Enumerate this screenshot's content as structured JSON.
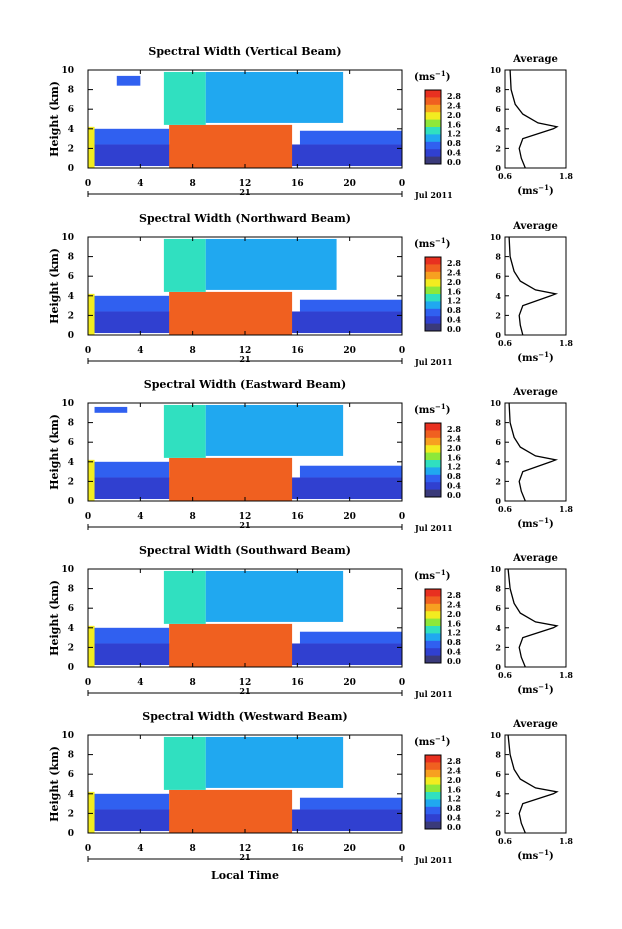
{
  "figure": {
    "colorbar_unit_main": "(ms",
    "colorbar_unit_exp": "−1",
    "colorbar_unit_close": ")",
    "colorbar_ticks": [
      "2.8",
      "2.4",
      "2.0",
      "1.6",
      "1.2",
      "0.8",
      "0.4",
      "0.0"
    ],
    "colorbar_colors": [
      "#e83020",
      "#f06020",
      "#f7a020",
      "#f2ec20",
      "#8ee83a",
      "#30e0c0",
      "#20a8f0",
      "#3060f0",
      "#3040d0",
      "#3a3a7a"
    ],
    "x_ticks": [
      "0",
      "4",
      "8",
      "12",
      "16",
      "20",
      "0"
    ],
    "day_label": "21",
    "month_label": "Jul 2011",
    "y_ticks": [
      "0",
      "2",
      "4",
      "6",
      "8",
      "10"
    ],
    "ylabel": "Height (km)",
    "avg_title": "Average",
    "avg_xticks": [
      "0.6",
      "1.8"
    ],
    "avg_xlabel_main": "(ms",
    "avg_xlabel_exp": "−1",
    "avg_xlabel_close": ")",
    "xlabel": "Local Time"
  },
  "chart_data": [
    {
      "type": "heatmap",
      "title": "Spectral Width (Vertical Beam)",
      "xlabel": "",
      "ylabel": "Height (km)",
      "xlim": [
        0,
        24
      ],
      "ylim": [
        0,
        10
      ],
      "clim": [
        0.0,
        2.8
      ],
      "regions": [
        {
          "x": [
            0,
            24
          ],
          "y": [
            0.2,
            2.4
          ],
          "v": 0.45
        },
        {
          "x": [
            0,
            6.2
          ],
          "y": [
            2.4,
            4.0
          ],
          "v": 0.55
        },
        {
          "x": [
            16.2,
            24
          ],
          "y": [
            2.4,
            3.8
          ],
          "v": 0.55
        },
        {
          "x": [
            0,
            0.5
          ],
          "y": [
            0,
            4.2
          ],
          "v": 2.0
        },
        {
          "x": [
            6.2,
            15.6
          ],
          "y": [
            0,
            4.4
          ],
          "v": 2.6
        },
        {
          "x": [
            5.8,
            9.0
          ],
          "y": [
            4.4,
            9.8
          ],
          "v": 1.3
        },
        {
          "x": [
            9.0,
            19.5
          ],
          "y": [
            4.6,
            9.8
          ],
          "v": 0.9
        },
        {
          "x": [
            2.2,
            4.0
          ],
          "y": [
            8.4,
            9.4
          ],
          "v": 0.6
        }
      ],
      "avg_profile": {
        "x": [
          1.0,
          0.92,
          0.88,
          0.95,
          1.55,
          1.62,
          1.25,
          0.95,
          0.8,
          0.72,
          0.7
        ],
        "y": [
          0,
          1,
          2,
          3,
          4,
          4.2,
          4.6,
          5.5,
          6.5,
          8,
          10
        ],
        "xlim": [
          0.6,
          1.8
        ]
      }
    },
    {
      "type": "heatmap",
      "title": "Spectral Width (Northward Beam)",
      "xlabel": "",
      "ylabel": "Height (km)",
      "xlim": [
        0,
        24
      ],
      "ylim": [
        0,
        10
      ],
      "clim": [
        0.0,
        2.8
      ],
      "regions": [
        {
          "x": [
            0,
            24
          ],
          "y": [
            0.2,
            2.4
          ],
          "v": 0.45
        },
        {
          "x": [
            0,
            6.2
          ],
          "y": [
            2.4,
            4.0
          ],
          "v": 0.55
        },
        {
          "x": [
            16.2,
            24
          ],
          "y": [
            2.4,
            3.6
          ],
          "v": 0.55
        },
        {
          "x": [
            0,
            0.5
          ],
          "y": [
            0,
            4.2
          ],
          "v": 2.0
        },
        {
          "x": [
            6.2,
            15.6
          ],
          "y": [
            0,
            4.4
          ],
          "v": 2.6
        },
        {
          "x": [
            5.8,
            9.0
          ],
          "y": [
            4.4,
            9.8
          ],
          "v": 1.3
        },
        {
          "x": [
            9.0,
            19.0
          ],
          "y": [
            4.6,
            9.8
          ],
          "v": 0.9
        }
      ],
      "avg_profile": {
        "x": [
          0.95,
          0.9,
          0.88,
          0.95,
          1.5,
          1.6,
          1.2,
          0.9,
          0.78,
          0.7,
          0.68
        ],
        "y": [
          0,
          1,
          2,
          3,
          4,
          4.2,
          4.6,
          5.5,
          6.5,
          8,
          10
        ],
        "xlim": [
          0.6,
          1.8
        ]
      }
    },
    {
      "type": "heatmap",
      "title": "Spectral Width (Eastward Beam)",
      "xlabel": "",
      "ylabel": "Height (km)",
      "xlim": [
        0,
        24
      ],
      "ylim": [
        0,
        10
      ],
      "clim": [
        0.0,
        2.8
      ],
      "regions": [
        {
          "x": [
            0,
            24
          ],
          "y": [
            0.2,
            2.4
          ],
          "v": 0.45
        },
        {
          "x": [
            0,
            6.2
          ],
          "y": [
            2.4,
            4.0
          ],
          "v": 0.55
        },
        {
          "x": [
            16.2,
            24
          ],
          "y": [
            2.4,
            3.6
          ],
          "v": 0.55
        },
        {
          "x": [
            0,
            0.5
          ],
          "y": [
            0,
            4.2
          ],
          "v": 2.0
        },
        {
          "x": [
            6.2,
            15.6
          ],
          "y": [
            0,
            4.4
          ],
          "v": 2.6
        },
        {
          "x": [
            5.8,
            9.0
          ],
          "y": [
            4.4,
            9.8
          ],
          "v": 1.3
        },
        {
          "x": [
            9.0,
            19.5
          ],
          "y": [
            4.6,
            9.8
          ],
          "v": 0.9
        },
        {
          "x": [
            0.5,
            3.0
          ],
          "y": [
            9.0,
            9.6
          ],
          "v": 0.6
        }
      ],
      "avg_profile": {
        "x": [
          1.0,
          0.92,
          0.88,
          0.95,
          1.5,
          1.6,
          1.2,
          0.9,
          0.78,
          0.7,
          0.68
        ],
        "y": [
          0,
          1,
          2,
          3,
          4,
          4.2,
          4.6,
          5.5,
          6.5,
          8,
          10
        ],
        "xlim": [
          0.6,
          1.8
        ]
      }
    },
    {
      "type": "heatmap",
      "title": "Spectral Width (Southward Beam)",
      "xlabel": "",
      "ylabel": "Height (km)",
      "xlim": [
        0,
        24
      ],
      "ylim": [
        0,
        10
      ],
      "clim": [
        0.0,
        2.8
      ],
      "regions": [
        {
          "x": [
            0,
            24
          ],
          "y": [
            0.2,
            2.4
          ],
          "v": 0.45
        },
        {
          "x": [
            0,
            6.2
          ],
          "y": [
            2.4,
            4.0
          ],
          "v": 0.55
        },
        {
          "x": [
            16.2,
            24
          ],
          "y": [
            2.4,
            3.6
          ],
          "v": 0.55
        },
        {
          "x": [
            0,
            0.5
          ],
          "y": [
            0,
            4.2
          ],
          "v": 2.0
        },
        {
          "x": [
            6.2,
            15.6
          ],
          "y": [
            0,
            4.4
          ],
          "v": 2.6
        },
        {
          "x": [
            5.8,
            9.0
          ],
          "y": [
            4.4,
            9.8
          ],
          "v": 1.3
        },
        {
          "x": [
            9.0,
            19.5
          ],
          "y": [
            4.6,
            9.8
          ],
          "v": 0.9
        }
      ],
      "avg_profile": {
        "x": [
          1.0,
          0.92,
          0.88,
          0.95,
          1.55,
          1.62,
          1.2,
          0.9,
          0.78,
          0.7,
          0.66
        ],
        "y": [
          0,
          1,
          2,
          3,
          4,
          4.2,
          4.6,
          5.5,
          6.5,
          8,
          10
        ],
        "xlim": [
          0.6,
          1.8
        ]
      }
    },
    {
      "type": "heatmap",
      "title": "Spectral Width (Westward Beam)",
      "xlabel": "Local Time",
      "ylabel": "Height (km)",
      "xlim": [
        0,
        24
      ],
      "ylim": [
        0,
        10
      ],
      "clim": [
        0.0,
        2.8
      ],
      "regions": [
        {
          "x": [
            0,
            24
          ],
          "y": [
            0.2,
            2.4
          ],
          "v": 0.45
        },
        {
          "x": [
            0,
            6.2
          ],
          "y": [
            2.4,
            4.0
          ],
          "v": 0.55
        },
        {
          "x": [
            16.2,
            24
          ],
          "y": [
            2.4,
            3.6
          ],
          "v": 0.55
        },
        {
          "x": [
            0,
            0.5
          ],
          "y": [
            0,
            4.2
          ],
          "v": 2.0
        },
        {
          "x": [
            6.2,
            15.6
          ],
          "y": [
            0,
            4.4
          ],
          "v": 2.6
        },
        {
          "x": [
            5.8,
            9.0
          ],
          "y": [
            4.4,
            9.8
          ],
          "v": 1.3
        },
        {
          "x": [
            9.0,
            19.5
          ],
          "y": [
            4.6,
            9.8
          ],
          "v": 0.9
        }
      ],
      "avg_profile": {
        "x": [
          1.0,
          0.92,
          0.88,
          0.95,
          1.55,
          1.62,
          1.2,
          0.9,
          0.78,
          0.7,
          0.66
        ],
        "y": [
          0,
          1,
          2,
          3,
          4,
          4.2,
          4.6,
          5.5,
          6.5,
          8,
          10
        ],
        "xlim": [
          0.6,
          1.8
        ]
      }
    }
  ]
}
